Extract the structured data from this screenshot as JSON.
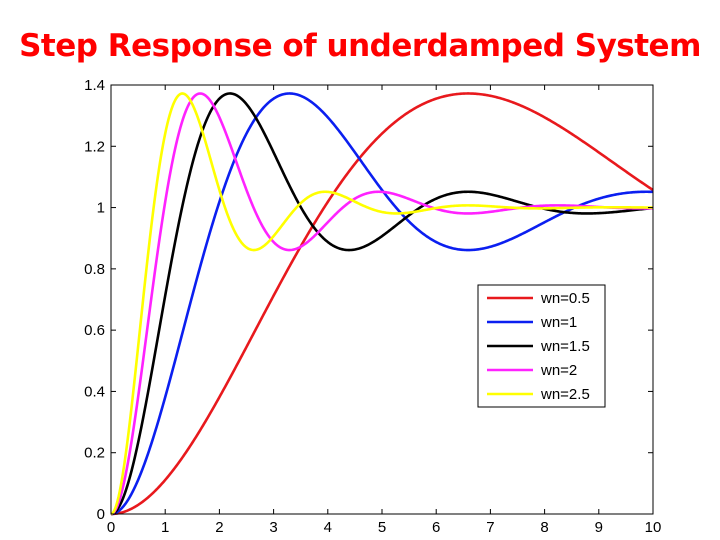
{
  "slide": {
    "title": "Step Response of underdamped System"
  },
  "chart_data": {
    "type": "line",
    "title": "",
    "xlabel": "",
    "ylabel": "",
    "xlim": [
      0,
      10
    ],
    "ylim": [
      0,
      1.4
    ],
    "xticks": [
      "0",
      "1",
      "2",
      "3",
      "4",
      "5",
      "6",
      "7",
      "8",
      "9",
      "10"
    ],
    "yticks": [
      "0",
      "0.2",
      "0.4",
      "0.6",
      "0.8",
      "1",
      "1.2",
      "1.4"
    ],
    "grid": false,
    "legend_position": "right",
    "damping_ratio": 0.3,
    "series": [
      {
        "name": "wn=0.5",
        "wn": 0.5,
        "color": "#e8191d"
      },
      {
        "name": "wn=1",
        "wn": 1.0,
        "color": "#0b1ff0"
      },
      {
        "name": "wn=1.5",
        "wn": 1.5,
        "color": "#000000"
      },
      {
        "name": "wn=2",
        "wn": 2.0,
        "color": "#ff22ff"
      },
      {
        "name": "wn=2.5",
        "wn": 2.5,
        "color": "#ffff00"
      }
    ]
  }
}
